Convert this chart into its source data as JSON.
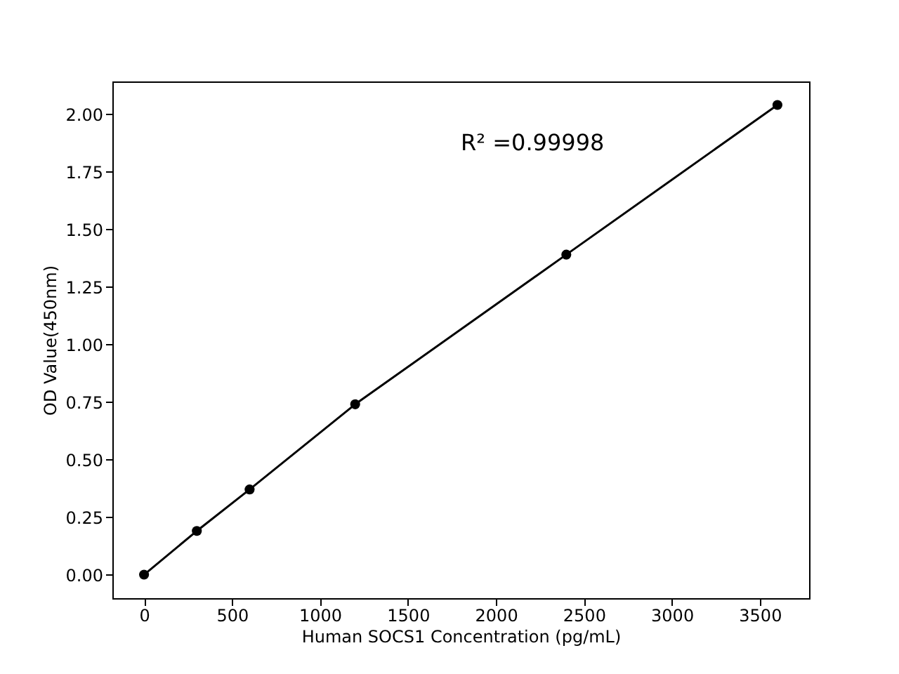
{
  "chart_data": {
    "type": "line",
    "xlabel": "Human SOCS1 Concentration (pg/mL)",
    "ylabel": "OD Value(450nm)",
    "x": [
      0,
      300,
      600,
      1200,
      2400,
      3600
    ],
    "series": [
      {
        "color": "#000000",
        "values": [
          0.0,
          0.19,
          0.37,
          0.74,
          1.39,
          2.04
        ]
      }
    ],
    "marker": "circle",
    "line_style": "solid",
    "grid": false,
    "xlim": [
      -180,
      3780
    ],
    "xticks": [
      0,
      500,
      1000,
      1500,
      2000,
      2500,
      3000,
      3500
    ],
    "ylim": [
      -0.102,
      2.142
    ],
    "yticks": [
      {
        "value": 0,
        "label": "0.00"
      },
      {
        "value": 0.25,
        "label": "0.25"
      },
      {
        "value": 0.5,
        "label": "0.50"
      },
      {
        "value": 0.75,
        "label": "0.75"
      },
      {
        "value": 1,
        "label": "1.00"
      },
      {
        "value": 1.25,
        "label": "1.25"
      },
      {
        "value": 1.5,
        "label": "1.50"
      },
      {
        "value": 1.75,
        "label": "1.75"
      },
      {
        "value": 2,
        "label": "2.00"
      }
    ],
    "annotations": [
      "R² =0.99998"
    ]
  }
}
